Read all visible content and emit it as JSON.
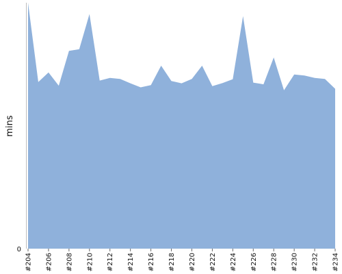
{
  "chart_data": {
    "type": "area",
    "title": "",
    "xlabel": "",
    "ylabel": "mins",
    "ylim": [
      0,
      12
    ],
    "y_ticks": [
      0
    ],
    "y_tick_labels": [
      "0"
    ],
    "x": [
      204,
      205,
      206,
      207,
      208,
      209,
      210,
      211,
      212,
      213,
      214,
      215,
      216,
      217,
      218,
      219,
      220,
      221,
      222,
      223,
      224,
      225,
      226,
      227,
      228,
      229,
      230,
      231,
      232,
      233,
      234
    ],
    "x_tick_labels": [
      "#204",
      "#206",
      "#208",
      "#210",
      "#212",
      "#214",
      "#216",
      "#218",
      "#220",
      "#222",
      "#224",
      "#226",
      "#228",
      "#230",
      "#232",
      "#234"
    ],
    "x_tick_values": [
      204,
      206,
      208,
      210,
      212,
      214,
      216,
      218,
      220,
      222,
      224,
      226,
      228,
      230,
      232,
      234
    ],
    "series": [
      {
        "values": [
          12.0,
          8.13,
          8.6,
          7.95,
          9.65,
          9.73,
          11.45,
          8.2,
          8.33,
          8.28,
          8.07,
          7.87,
          7.98,
          8.93,
          8.18,
          8.07,
          8.28,
          8.93,
          7.93,
          8.08,
          8.27,
          11.35,
          8.1,
          8.02,
          9.33,
          7.73,
          8.5,
          8.45,
          8.33,
          8.28,
          7.8
        ],
        "color": "#8fb1db"
      }
    ],
    "grid": false,
    "legend": "none"
  }
}
